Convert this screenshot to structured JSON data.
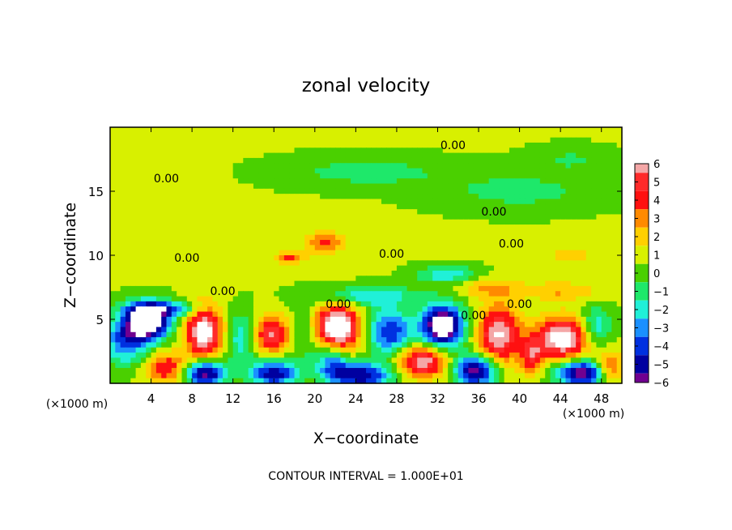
{
  "chart_data": {
    "type": "heatmap",
    "title": "zonal velocity",
    "xlabel": "X−coordinate",
    "ylabel": "Z−coordinate",
    "x_unit_left": "(×1000 m)",
    "x_unit_right": "(×1000 m)",
    "footer": "CONTOUR INTERVAL = 1.000E+01",
    "xlim": [
      0,
      50
    ],
    "ylim": [
      0,
      20
    ],
    "x_ticks": [
      "4",
      "8",
      "12",
      "16",
      "20",
      "24",
      "28",
      "32",
      "36",
      "40",
      "44",
      "48"
    ],
    "x_tick_values": [
      4,
      8,
      12,
      16,
      20,
      24,
      28,
      32,
      36,
      40,
      44,
      48
    ],
    "y_ticks": [
      "5",
      "10",
      "15"
    ],
    "y_tick_values": [
      5,
      10,
      15
    ],
    "colorbar": {
      "labels": [
        "6",
        "5",
        "4",
        "3",
        "2",
        "1",
        "0",
        "−1",
        "−2",
        "−3",
        "−4",
        "−5",
        "−6"
      ],
      "values": [
        6,
        5,
        4,
        3,
        2,
        1,
        0,
        -1,
        -2,
        -3,
        -4,
        -5,
        -6
      ],
      "colors": [
        "#f4a7a7",
        "#ff2a2a",
        "#ff1010",
        "#ff8a00",
        "#ffd000",
        "#d8f000",
        "#4ad000",
        "#1ee86a",
        "#20f0d8",
        "#1a90ff",
        "#0030e0",
        "#0000a0",
        "#700090"
      ]
    },
    "contour_labels": [
      {
        "text": "0.00",
        "x": 5.5,
        "z": 15.7
      },
      {
        "text": "0.00",
        "x": 33.5,
        "z": 18.3
      },
      {
        "text": "0.00",
        "x": 37.5,
        "z": 13.1
      },
      {
        "text": "0.00",
        "x": 39.2,
        "z": 10.6
      },
      {
        "text": "0.00",
        "x": 7.5,
        "z": 9.5
      },
      {
        "text": "0.00",
        "x": 27.5,
        "z": 9.8
      },
      {
        "text": "0.00",
        "x": 11.0,
        "z": 6.9
      },
      {
        "text": "0.00",
        "x": 22.3,
        "z": 5.9
      },
      {
        "text": "0.00",
        "x": 40.0,
        "z": 5.9
      },
      {
        "text": "0.00",
        "x": 35.5,
        "z": 5.0
      }
    ],
    "features": [
      {
        "x": 3.6,
        "z": 4.8,
        "v": -9,
        "sx": 2.2,
        "sz": 1.4
      },
      {
        "x": 9.2,
        "z": 4.0,
        "v": 7,
        "sx": 1.8,
        "sz": 2.0
      },
      {
        "x": 15.8,
        "z": 3.8,
        "v": 5,
        "sx": 1.8,
        "sz": 1.4
      },
      {
        "x": 22.2,
        "z": 4.3,
        "v": 8,
        "sx": 2.2,
        "sz": 1.8
      },
      {
        "x": 27.3,
        "z": 4.0,
        "v": -5,
        "sx": 2.2,
        "sz": 1.8
      },
      {
        "x": 32.5,
        "z": 4.5,
        "v": -9,
        "sx": 2.0,
        "sz": 1.6
      },
      {
        "x": 38.0,
        "z": 3.8,
        "v": 6,
        "sx": 2.0,
        "sz": 2.2
      },
      {
        "x": 44.2,
        "z": 3.5,
        "v": 7,
        "sx": 2.4,
        "sz": 1.6
      },
      {
        "x": 1.5,
        "z": 3.2,
        "v": -4,
        "sx": 2.2,
        "sz": 1.8
      },
      {
        "x": 5.5,
        "z": 1.2,
        "v": 4,
        "sx": 2.0,
        "sz": 1.2
      },
      {
        "x": 9.3,
        "z": 0.8,
        "v": -7,
        "sx": 2.0,
        "sz": 1.0
      },
      {
        "x": 16.0,
        "z": 0.8,
        "v": -6,
        "sx": 2.2,
        "sz": 1.0
      },
      {
        "x": 21.7,
        "z": 1.8,
        "v": -4,
        "sx": 1.6,
        "sz": 1.5
      },
      {
        "x": 24.5,
        "z": 0.6,
        "v": -6,
        "sx": 3.0,
        "sz": 1.0
      },
      {
        "x": 30.5,
        "z": 1.7,
        "v": 6,
        "sx": 2.3,
        "sz": 1.2
      },
      {
        "x": 35.7,
        "z": 1.0,
        "v": -7,
        "sx": 2.0,
        "sz": 1.2
      },
      {
        "x": 46.0,
        "z": 0.8,
        "v": -7,
        "sx": 2.5,
        "sz": 1.0
      },
      {
        "x": 41.2,
        "z": 2.2,
        "v": 4,
        "sx": 1.2,
        "sz": 1.5
      },
      {
        "x": 48.8,
        "z": 1.2,
        "v": 4,
        "sx": 1.2,
        "sz": 1.2
      },
      {
        "x": 12.8,
        "z": 3.5,
        "v": -3,
        "sx": 1.5,
        "sz": 2.0
      },
      {
        "x": 19.0,
        "z": 3.8,
        "v": -2,
        "sx": 1.5,
        "sz": 2.0
      },
      {
        "x": 47.5,
        "z": 4.5,
        "v": -3,
        "sx": 1.5,
        "sz": 1.5
      },
      {
        "x": 5.5,
        "z": 5.8,
        "v": -4,
        "sx": 3.5,
        "sz": 0.6
      },
      {
        "x": 25.0,
        "z": 6.8,
        "v": -3,
        "sx": 5.0,
        "sz": 0.8
      },
      {
        "x": 33.0,
        "z": 8.5,
        "v": -3,
        "sx": 3.0,
        "sz": 0.7
      },
      {
        "x": 21.0,
        "z": 11.0,
        "v": 3,
        "sx": 2.0,
        "sz": 0.8
      },
      {
        "x": 17.5,
        "z": 9.8,
        "v": 3,
        "sx": 1.5,
        "sz": 0.5
      },
      {
        "x": 37.0,
        "z": 7.5,
        "v": 2,
        "sx": 3.0,
        "sz": 0.8
      },
      {
        "x": 44.0,
        "z": 7.2,
        "v": 2,
        "sx": 4.0,
        "sz": 0.7
      },
      {
        "x": 25.0,
        "z": 16.5,
        "v": -1.6,
        "sx": 8.0,
        "sz": 1.2
      },
      {
        "x": 40.0,
        "z": 15.0,
        "v": -1.5,
        "sx": 8.0,
        "sz": 1.5
      },
      {
        "x": 45.0,
        "z": 17.5,
        "v": -1.2,
        "sx": 4.0,
        "sz": 1.0
      },
      {
        "x": 3.0,
        "z": 17.5,
        "v": 0.8,
        "sx": 4.0,
        "sz": 1.5
      },
      {
        "x": 10.0,
        "z": 12.0,
        "v": 0.8,
        "sx": 5.0,
        "sz": 1.0
      },
      {
        "x": 45.0,
        "z": 10.0,
        "v": 1.0,
        "sx": 5.0,
        "sz": 1.0
      }
    ],
    "grid": false
  }
}
